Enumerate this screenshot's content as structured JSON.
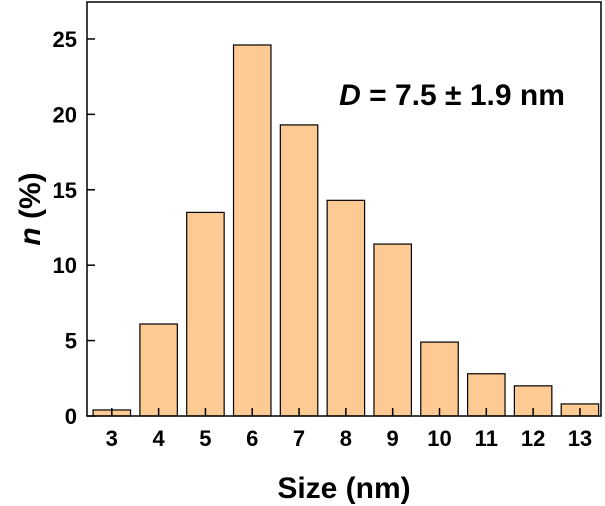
{
  "chart_data": {
    "type": "bar",
    "x_label": "Size (nm)",
    "y_label": {
      "symbol": "n",
      "text": " (%)"
    },
    "annotation": {
      "symbol": "D",
      "text": " = 7.5 ± 1.9 nm"
    },
    "x": [
      3,
      4,
      5,
      6,
      7,
      8,
      9,
      10,
      11,
      12,
      13
    ],
    "values": [
      0.4,
      6.1,
      13.5,
      24.6,
      19.3,
      14.3,
      11.4,
      4.9,
      2.8,
      2.0,
      0.8
    ],
    "color": "#fdca94",
    "xlim": [
      2.47,
      13.45
    ],
    "xticks": [
      3,
      4,
      5,
      6,
      7,
      8,
      9,
      10,
      11,
      12,
      13
    ],
    "ylim": [
      0,
      27.45
    ],
    "yticks": [
      0,
      5,
      10,
      15,
      20,
      25
    ]
  }
}
